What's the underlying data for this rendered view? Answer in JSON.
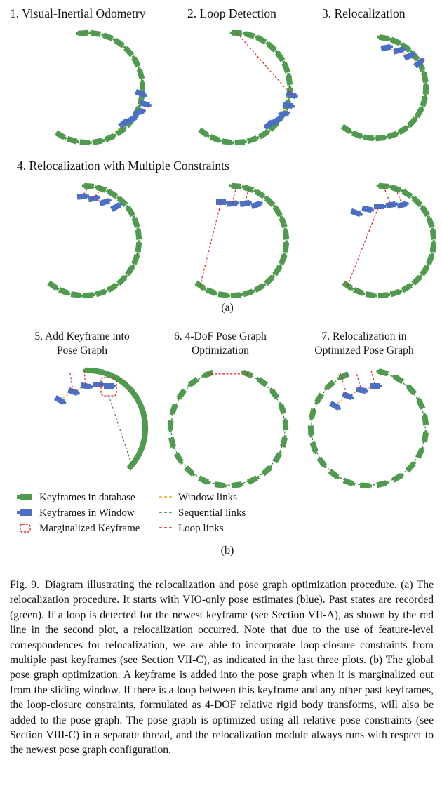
{
  "figure": {
    "section_a": {
      "panel_titles": [
        "1. Visual-Inertial Odometry",
        "2. Loop Detection",
        "3. Relocalization",
        "4. Relocalization with Multiple Constraints"
      ],
      "label": "(a)"
    },
    "section_b": {
      "panel_titles": [
        [
          "5. Add Keyframe into",
          "Pose Graph"
        ],
        [
          "6. 4-DoF Pose Graph",
          "Optimization"
        ],
        [
          "7. Relocalization in",
          "Optimized Pose Graph"
        ]
      ],
      "label": "(b)"
    },
    "legend": {
      "keyframes_database": "Keyframes in database",
      "keyframes_window": "Keyframes in Window",
      "marginalized": "Marginalized Keyframe",
      "window_links": "Window links",
      "sequential_links": "Sequential links",
      "loop_links": "Loop links"
    },
    "colors": {
      "database": "#4f9a4f",
      "window": "#4a6fc4",
      "sequential": "#2e7d32",
      "window_link": "#f5a623",
      "loop": "#e02020"
    }
  },
  "caption": {
    "fig_number": "Fig. 9.",
    "text": "Diagram illustrating the relocalization and pose graph optimization procedure. (a) The relocalization procedure. It starts with VIO-only pose estimates (blue). Past states are recorded (green). If a loop is detected for the newest keyframe (see Section VII-A), as shown by the red line in the second plot, a relocalization occurred. Note that due to the use of feature-level correspondences for relocalization, we are able to incorporate loop-closure constraints from multiple past keyframes (see Section VII-C), as indicated in the last three plots. (b) The global pose graph optimization. A keyframe is added into the pose graph when it is marginalized out from the sliding window. If there is a loop between this keyframe and any other past keyframes, the loop-closure constraints, formulated as 4-DOF relative rigid body transforms, will also be added to the pose graph. The pose graph is optimized using all relative pose constraints (see Section VIII-C) in a separate thread, and the relocalization module always runs with respect to the newest pose graph configuration."
  }
}
